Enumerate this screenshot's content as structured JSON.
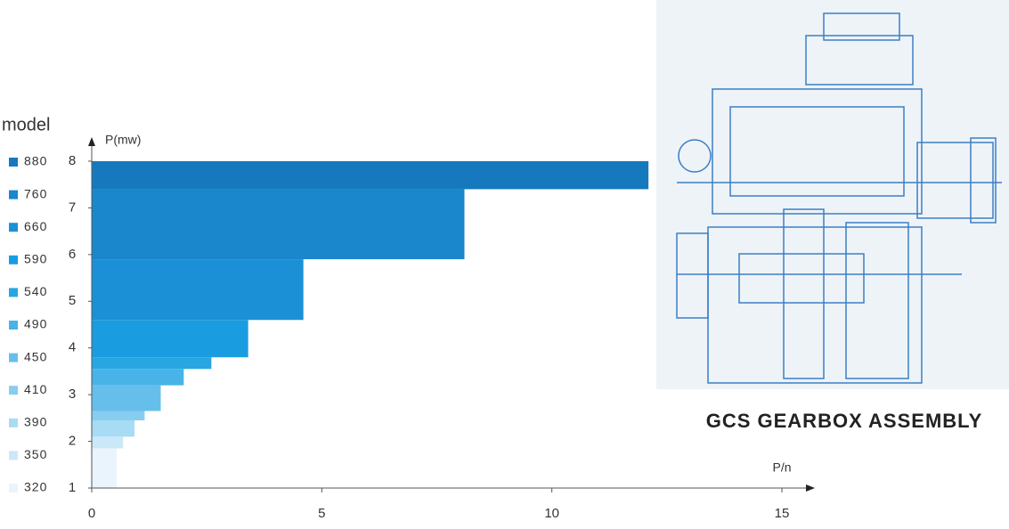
{
  "chart_data": {
    "type": "step-bar",
    "legend_title": "model",
    "ylabel": "P(mw)",
    "xlabel": "P/n",
    "categories": [
      "880",
      "760",
      "660",
      "590",
      "540",
      "490",
      "450",
      "410",
      "390",
      "350",
      "320"
    ],
    "y_values": [
      8.0,
      7.4,
      5.9,
      4.6,
      3.8,
      3.55,
      3.2,
      2.65,
      2.45,
      2.1,
      1.85
    ],
    "x_values": [
      12.1,
      8.1,
      4.6,
      3.4,
      2.6,
      2.0,
      1.5,
      1.15,
      0.93,
      0.68,
      0.54
    ],
    "colors": [
      "#1679be",
      "#1a86cc",
      "#1b90d6",
      "#1a9de0",
      "#28a6e2",
      "#47b3e6",
      "#66bfea",
      "#87cdef",
      "#a8dbf4",
      "#cae8f8",
      "#e9f4fc"
    ],
    "xlim": [
      0,
      15.6
    ],
    "xticks": [
      0,
      5,
      10,
      15
    ],
    "ylim": [
      1,
      8.4
    ],
    "yticks": [
      1,
      2,
      3,
      4,
      5,
      6,
      7,
      8
    ]
  },
  "caption": "GCS GEARBOX ASSEMBLY"
}
